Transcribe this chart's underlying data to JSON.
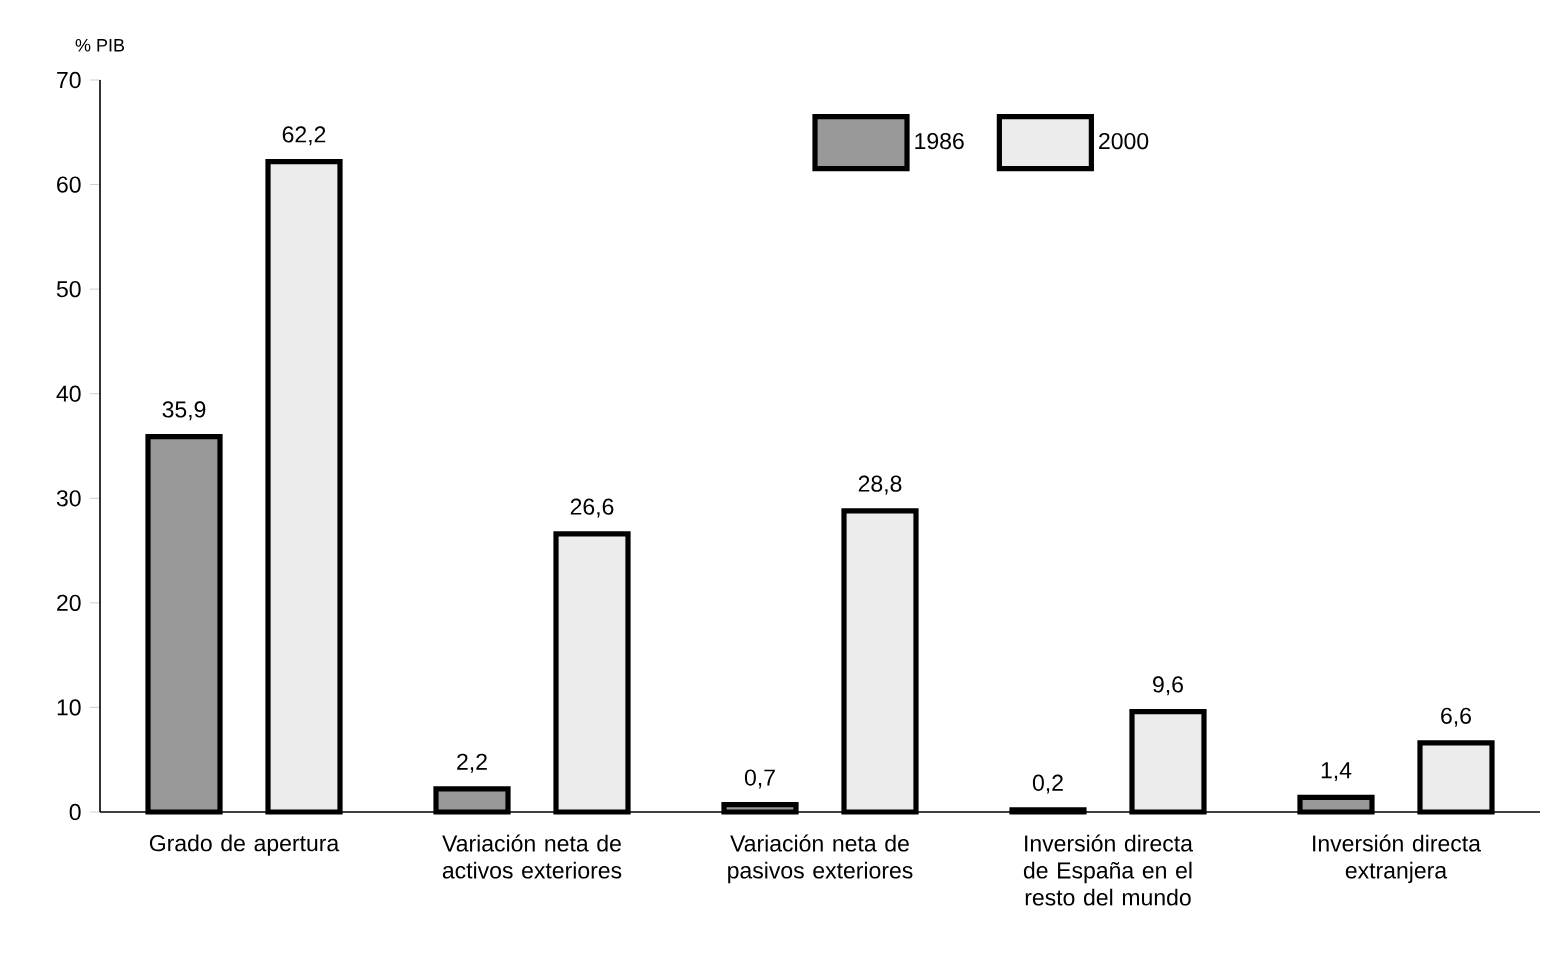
{
  "chart_data": {
    "type": "bar",
    "ylabel": "% PIB",
    "categories": [
      "Grado de apertura",
      "Variación neta de activos exteriores",
      "Variación neta de pasivos exteriores",
      "Inversión directa de España en el resto del mundo",
      "Inversión directa extranjera"
    ],
    "series": [
      {
        "name": "1986",
        "color": "#999999",
        "values": [
          35.9,
          2.2,
          0.7,
          0.2,
          1.4
        ],
        "value_labels": [
          "35,9",
          "2,2",
          "0,7",
          "0,2",
          "1,4"
        ]
      },
      {
        "name": "2000",
        "color": "#ececec",
        "values": [
          62.2,
          26.6,
          28.8,
          9.6,
          6.6
        ],
        "value_labels": [
          "62,2",
          "26,6",
          "28,8",
          "9,6",
          "6,6"
        ]
      }
    ],
    "ylim": [
      0,
      70
    ],
    "yticks": [
      0,
      10,
      20,
      30,
      40,
      50,
      60,
      70
    ],
    "legend": "top",
    "grid": false
  }
}
